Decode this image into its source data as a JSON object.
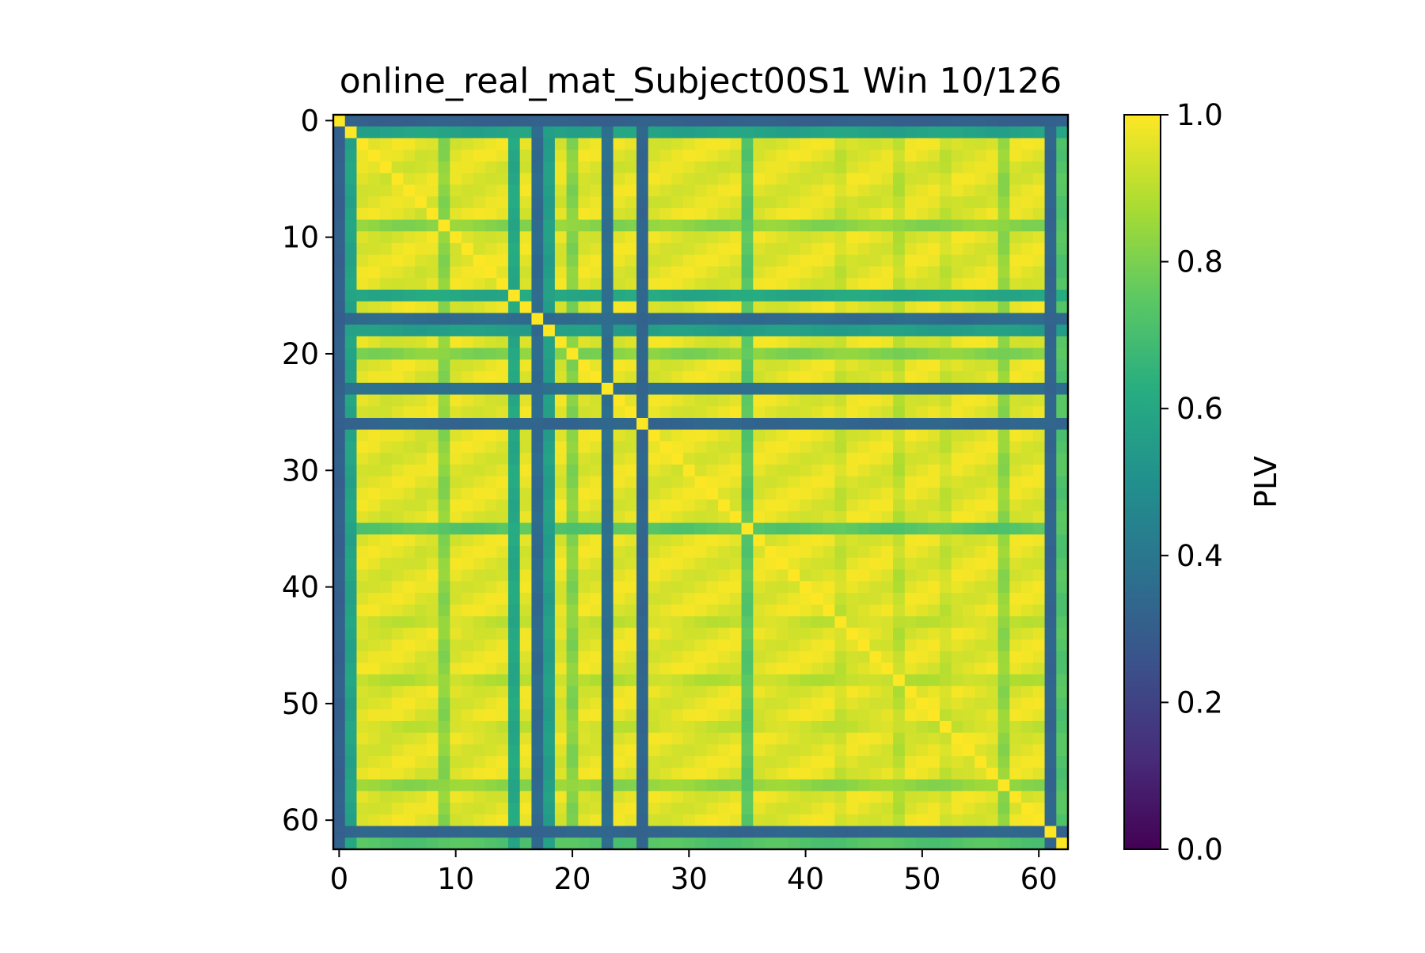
{
  "chart_data": {
    "type": "heatmap",
    "title": "online_real_mat_Subject00S1 Win 10/126",
    "matrix_size": 63,
    "x_ticks": [
      0,
      10,
      20,
      30,
      40,
      50,
      60
    ],
    "y_ticks": [
      0,
      10,
      20,
      30,
      40,
      50,
      60
    ],
    "xlim": [
      -0.5,
      62.5
    ],
    "ylim": [
      62.5,
      -0.5
    ],
    "colormap": "viridis",
    "colorbar": {
      "label": "PLV",
      "range": [
        0.0,
        1.0
      ],
      "ticks": [
        "0.0",
        "0.2",
        "0.4",
        "0.6",
        "0.8",
        "1.0"
      ]
    },
    "diagonal_value": 1.0,
    "channel_strength": [
      0.32,
      0.6,
      0.99,
      0.99,
      0.98,
      0.99,
      0.99,
      0.98,
      0.99,
      0.85,
      0.99,
      0.99,
      0.99,
      0.99,
      0.99,
      0.62,
      0.99,
      0.36,
      0.58,
      0.99,
      0.84,
      0.99,
      0.99,
      0.38,
      0.99,
      0.99,
      0.34,
      0.99,
      0.99,
      0.99,
      0.99,
      0.99,
      0.99,
      0.99,
      0.99,
      0.76,
      0.99,
      0.99,
      0.99,
      0.99,
      0.99,
      0.99,
      0.99,
      0.95,
      0.99,
      0.99,
      0.99,
      0.99,
      0.93,
      0.99,
      0.99,
      0.99,
      0.95,
      0.99,
      0.99,
      0.99,
      0.99,
      0.86,
      0.99,
      0.99,
      0.99,
      0.34,
      0.75
    ]
  }
}
